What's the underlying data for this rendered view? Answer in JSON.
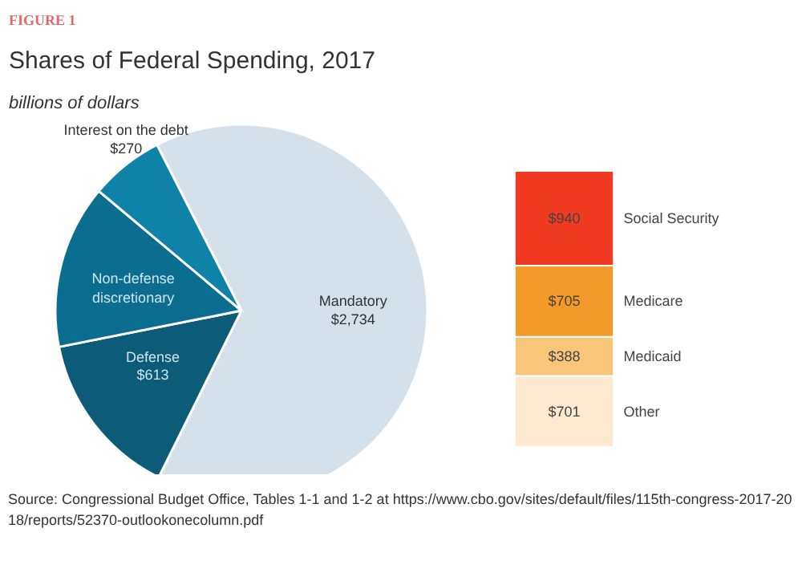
{
  "chart_data": [
    {
      "type": "pie",
      "title": "Shares of Federal Spending, 2017",
      "subtitle": "billions of dollars",
      "categories": [
        "Mandatory",
        "Defense",
        "Non-defense discretionary",
        "Interest on the debt"
      ],
      "values": [
        2734,
        613,
        600,
        270
      ],
      "colors": [
        "#d5e1ea",
        "#0c5b79",
        "#0b6e91",
        "#0f82a8"
      ],
      "value_labels": [
        "$2,734",
        "$613",
        null,
        "$270"
      ],
      "annotations": [
        "FIGURE 1",
        "Source: Congressional Budget Office, Tables 1-1 and 1-2 at https://www.cbo.gov/sites/default/files/115th-congress-2017-2018/reports/52370-outlookonecolumn.pdf"
      ]
    },
    {
      "type": "bar",
      "stacked": true,
      "tick_labels": false,
      "categories": [
        null
      ],
      "series": [
        {
          "name": "Other",
          "color": "#fde8d0",
          "values": [
            701
          ],
          "value_labels": [
            "$701"
          ]
        },
        {
          "name": "Medicaid",
          "color": "#f9c57a",
          "values": [
            388
          ],
          "value_labels": [
            "$388"
          ]
        },
        {
          "name": "Medicare",
          "color": "#f39a2b",
          "values": [
            705
          ],
          "value_labels": [
            "$705"
          ]
        },
        {
          "name": "Social Security",
          "color": "#f03a22",
          "values": [
            940
          ],
          "value_labels": [
            "$940"
          ]
        }
      ]
    }
  ]
}
